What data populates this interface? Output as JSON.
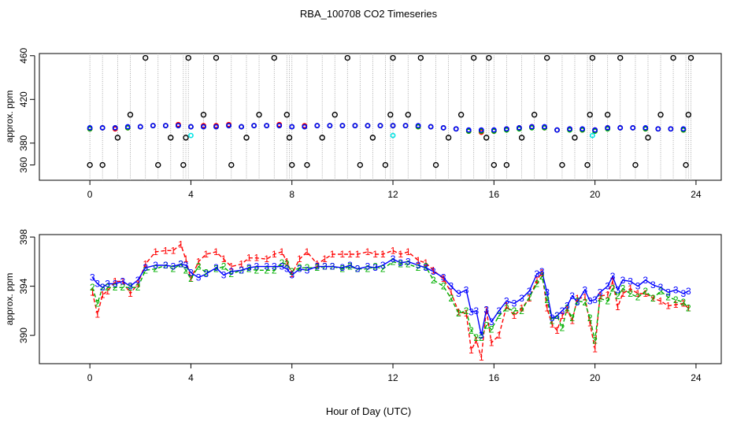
{
  "figure": {
    "title": "RBA_100708  CO2 Timeseries",
    "xlabel": "Hour of Day (UTC)"
  },
  "colors": {
    "series1": "#ff0000",
    "series2": "#00b000",
    "series3": "#0000ff",
    "outlier": "#000000",
    "flagged": "#00e5e5",
    "guide": "#999999"
  },
  "chart_data": [
    {
      "type": "scatter",
      "name": "top-panel",
      "ylabel": "approx. ppm",
      "xlim": [
        -2.0,
        25.0
      ],
      "ylim": [
        346,
        462
      ],
      "xticks": [
        0,
        4,
        8,
        12,
        16,
        20,
        24
      ],
      "yticks": [
        360,
        380,
        420,
        460
      ],
      "series": [
        {
          "name": "1",
          "x": [
            0.0,
            0.5,
            1.0,
            1.5,
            2.0,
            2.5,
            3.0,
            3.5,
            4.0,
            4.5,
            5.0,
            5.5,
            6.0,
            6.5,
            7.0,
            7.5,
            8.0,
            8.5,
            9.0,
            9.5,
            10.0,
            10.5,
            11.0,
            11.5,
            12.0,
            12.5,
            13.0,
            13.5,
            14.0,
            14.5,
            15.0,
            15.5,
            16.0,
            16.5,
            17.0,
            17.5,
            18.0,
            18.5,
            19.0,
            19.5,
            20.0,
            20.5,
            21.0,
            21.5,
            22.0,
            22.5,
            23.0,
            23.5
          ],
          "y": [
            393,
            394,
            393,
            394,
            395,
            396,
            396,
            397,
            395,
            396,
            396,
            397,
            395,
            396,
            396,
            397,
            395,
            396,
            396,
            396,
            396,
            396,
            396,
            396,
            396,
            396,
            395,
            395,
            394,
            393,
            391,
            390,
            391,
            393,
            394,
            395,
            394,
            392,
            393,
            392,
            392,
            394,
            394,
            394,
            393,
            393,
            393,
            392
          ]
        },
        {
          "name": "2",
          "x": [
            0.0,
            0.5,
            1.0,
            1.5,
            2.0,
            2.5,
            3.0,
            3.5,
            4.0,
            4.5,
            5.0,
            5.5,
            6.0,
            6.5,
            7.0,
            7.5,
            8.0,
            8.5,
            9.0,
            9.5,
            10.0,
            10.5,
            11.0,
            11.5,
            12.0,
            12.5,
            13.0,
            13.5,
            14.0,
            14.5,
            15.0,
            15.5,
            16.0,
            16.5,
            17.0,
            17.5,
            18.0,
            18.5,
            19.0,
            19.5,
            20.0,
            20.5,
            21.0,
            21.5,
            22.0,
            22.5,
            23.0,
            23.5
          ],
          "y": [
            393,
            394,
            394,
            394,
            395,
            396,
            396,
            396,
            395,
            395,
            395,
            396,
            395,
            396,
            396,
            396,
            395,
            395,
            396,
            396,
            396,
            396,
            396,
            396,
            396,
            396,
            395,
            395,
            394,
            393,
            391,
            391,
            391,
            392,
            393,
            394,
            394,
            392,
            392,
            392,
            391,
            393,
            394,
            394,
            393,
            393,
            393,
            392
          ]
        },
        {
          "name": "3",
          "x": [
            0.0,
            0.5,
            1.0,
            1.5,
            2.0,
            2.5,
            3.0,
            3.5,
            4.0,
            4.5,
            5.0,
            5.5,
            6.0,
            6.5,
            7.0,
            7.5,
            8.0,
            8.5,
            9.0,
            9.5,
            10.0,
            10.5,
            11.0,
            11.5,
            12.0,
            12.5,
            13.0,
            13.5,
            14.0,
            14.5,
            15.0,
            15.5,
            16.0,
            16.5,
            17.0,
            17.5,
            18.0,
            18.5,
            19.0,
            19.5,
            20.0,
            20.5,
            21.0,
            21.5,
            22.0,
            22.5,
            23.0,
            23.5
          ],
          "y": [
            394,
            394,
            394,
            395,
            395,
            396,
            396,
            396,
            395,
            395,
            395,
            396,
            395,
            396,
            396,
            396,
            395,
            395,
            396,
            396,
            396,
            396,
            396,
            396,
            396,
            396,
            396,
            395,
            394,
            393,
            392,
            392,
            392,
            393,
            394,
            395,
            395,
            392,
            393,
            393,
            392,
            394,
            394,
            394,
            394,
            393,
            393,
            393
          ]
        },
        {
          "name": "outliers",
          "x": [
            0.0,
            0.5,
            1.1,
            1.6,
            2.2,
            2.7,
            3.2,
            3.7,
            3.8,
            3.9,
            4.5,
            5.0,
            5.6,
            6.2,
            6.7,
            7.3,
            7.8,
            7.9,
            8.0,
            8.6,
            9.2,
            9.7,
            10.2,
            10.7,
            11.2,
            11.7,
            11.9,
            12.0,
            12.6,
            13.1,
            13.7,
            14.2,
            14.7,
            15.2,
            15.7,
            15.8,
            16.0,
            16.5,
            17.1,
            17.6,
            18.1,
            18.7,
            19.2,
            19.7,
            19.8,
            19.9,
            20.5,
            21.0,
            21.6,
            22.1,
            22.6,
            23.1,
            23.6,
            23.7,
            23.8
          ],
          "y": [
            360,
            360,
            385,
            406,
            458,
            360,
            385,
            360,
            385,
            458,
            406,
            458,
            360,
            385,
            406,
            458,
            406,
            385,
            360,
            360,
            385,
            406,
            458,
            360,
            385,
            360,
            406,
            458,
            406,
            458,
            360,
            385,
            406,
            458,
            385,
            458,
            360,
            360,
            385,
            406,
            458,
            360,
            385,
            360,
            406,
            458,
            406,
            458,
            360,
            385,
            406,
            458,
            360,
            406,
            458
          ]
        }
      ]
    },
    {
      "type": "line",
      "name": "bottom-panel",
      "ylabel": "approx. ppm",
      "xlim": [
        -2.0,
        25.0
      ],
      "ylim": [
        387.7,
        398.2
      ],
      "xticks": [
        0,
        4,
        8,
        12,
        16,
        20,
        24
      ],
      "yticks": [
        390,
        394,
        398
      ],
      "point_labels": [
        "1",
        "2",
        "3"
      ],
      "x": [
        0.1,
        0.3,
        0.5,
        0.7,
        1.0,
        1.3,
        1.6,
        1.9,
        2.2,
        2.6,
        3.0,
        3.3,
        3.6,
        3.8,
        4.0,
        4.3,
        4.6,
        5.0,
        5.3,
        5.6,
        6.0,
        6.3,
        6.6,
        7.0,
        7.3,
        7.6,
        7.8,
        8.0,
        8.3,
        8.6,
        9.0,
        9.3,
        9.6,
        10.0,
        10.3,
        10.6,
        11.0,
        11.3,
        11.6,
        12.0,
        12.3,
        12.6,
        13.0,
        13.3,
        13.6,
        14.0,
        14.3,
        14.6,
        14.9,
        15.1,
        15.3,
        15.5,
        15.7,
        15.9,
        16.2,
        16.5,
        16.8,
        17.1,
        17.4,
        17.7,
        17.9,
        18.1,
        18.3,
        18.5,
        18.7,
        18.9,
        19.1,
        19.3,
        19.6,
        19.8,
        20.0,
        20.2,
        20.5,
        20.7,
        20.9,
        21.1,
        21.4,
        21.7,
        22.0,
        22.3,
        22.6,
        22.9,
        23.2,
        23.5,
        23.7
      ],
      "series": [
        {
          "name": "1",
          "values": [
            393.5,
            391.7,
            393.3,
            393.6,
            394.4,
            394.4,
            393.4,
            394.2,
            395.8,
            396.8,
            396.9,
            396.9,
            397.4,
            396.2,
            394.6,
            396.0,
            396.6,
            396.8,
            396.2,
            395.6,
            395.8,
            396.3,
            396.3,
            396.2,
            396.6,
            396.8,
            396.0,
            395.0,
            396.2,
            396.8,
            395.8,
            396.2,
            396.6,
            396.6,
            396.6,
            396.6,
            396.8,
            396.6,
            396.6,
            396.9,
            396.6,
            396.8,
            396.1,
            395.9,
            395.3,
            394.6,
            393.5,
            391.9,
            391.8,
            388.8,
            389.6,
            388.2,
            392.1,
            389.4,
            390.0,
            392.4,
            391.6,
            392.2,
            393.0,
            394.5,
            395.1,
            392.2,
            390.9,
            390.4,
            391.6,
            392.1,
            391.2,
            393.0,
            393.1,
            391.0,
            388.9,
            393.2,
            393.3,
            394.4,
            392.3,
            393.4,
            393.8,
            393.4,
            393.4,
            393.0,
            392.8,
            392.4,
            392.5,
            392.6,
            392.2
          ]
        },
        {
          "name": "2",
          "values": [
            393.9,
            392.6,
            393.9,
            393.9,
            393.9,
            393.9,
            393.9,
            393.9,
            395.3,
            395.4,
            395.7,
            395.4,
            395.8,
            395.3,
            394.6,
            395.6,
            395.1,
            395.4,
            395.6,
            395.0,
            395.3,
            395.4,
            395.3,
            395.3,
            395.3,
            395.9,
            395.8,
            395.2,
            395.5,
            395.5,
            395.5,
            395.6,
            395.6,
            395.4,
            395.6,
            395.4,
            395.4,
            395.6,
            395.4,
            396.0,
            395.8,
            395.8,
            395.5,
            395.6,
            394.5,
            394.0,
            393.0,
            391.8,
            392.0,
            390.4,
            389.8,
            389.8,
            390.8,
            390.5,
            391.6,
            392.2,
            392.0,
            392.0,
            393.1,
            394.2,
            394.8,
            392.9,
            391.2,
            391.6,
            390.6,
            392.2,
            391.4,
            392.8,
            392.7,
            391.4,
            389.6,
            393.0,
            392.8,
            393.8,
            393.2,
            393.8,
            393.4,
            393.1,
            393.6,
            393.0,
            393.6,
            393.1,
            392.9,
            392.7,
            392.2
          ]
        },
        {
          "name": "3",
          "values": [
            394.7,
            394.2,
            393.9,
            394.2,
            394.2,
            394.4,
            394.0,
            394.5,
            395.5,
            395.7,
            395.7,
            395.6,
            395.8,
            395.7,
            395.1,
            394.7,
            395.0,
            395.5,
            394.9,
            395.2,
            395.3,
            395.5,
            395.6,
            395.6,
            395.6,
            395.6,
            395.4,
            394.9,
            395.4,
            395.3,
            395.6,
            395.6,
            395.6,
            395.5,
            395.7,
            395.4,
            395.6,
            395.5,
            395.7,
            396.2,
            395.9,
            396.0,
            395.7,
            395.5,
            395.2,
            394.7,
            394.0,
            393.4,
            393.7,
            391.9,
            392.0,
            390.0,
            392.1,
            391.1,
            392.0,
            392.8,
            392.6,
            393.0,
            393.6,
            395.0,
            395.2,
            393.5,
            391.4,
            391.6,
            392.0,
            392.4,
            393.2,
            392.7,
            393.7,
            392.8,
            392.9,
            393.5,
            394.0,
            394.8,
            393.7,
            394.5,
            394.4,
            394.0,
            394.5,
            394.1,
            393.9,
            393.5,
            393.7,
            393.4,
            393.6
          ]
        }
      ]
    }
  ]
}
